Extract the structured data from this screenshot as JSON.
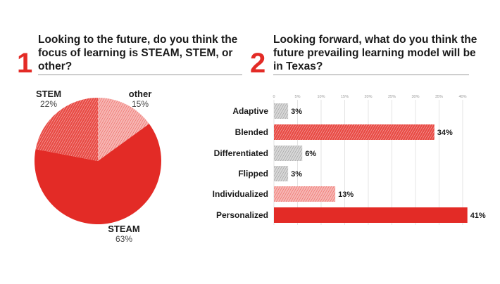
{
  "chart_data": [
    {
      "type": "pie",
      "number": "1",
      "title": "Looking to the future, do you think the focus of learning is STEAM, STEM, or other?",
      "slices": [
        {
          "label": "other",
          "value": 15,
          "display": "15%",
          "fill": "light-hatch"
        },
        {
          "label": "STEAM",
          "value": 63,
          "display": "63%",
          "fill": "solid"
        },
        {
          "label": "STEM",
          "value": 22,
          "display": "22%",
          "fill": "red-hatch"
        }
      ]
    },
    {
      "type": "bar",
      "orientation": "horizontal",
      "number": "2",
      "title": "Looking forward, what do you think the future prevailing learning model will be in Texas?",
      "categories": [
        "Adaptive",
        "Blended",
        "Differentiated",
        "Flipped",
        "Individualized",
        "Personalized"
      ],
      "values": [
        3,
        34,
        6,
        3,
        13,
        41
      ],
      "value_labels": [
        "3%",
        "34%",
        "6%",
        "3%",
        "13%",
        "41%"
      ],
      "fills": [
        "gray-hatch",
        "red-hatch",
        "gray-hatch",
        "gray-hatch",
        "light-hatch",
        "solid"
      ],
      "xlim": [
        0,
        40
      ],
      "ticks": [
        0,
        5,
        10,
        15,
        20,
        25,
        30,
        35,
        40
      ],
      "tick_labels": [
        "0",
        "5%",
        "10%",
        "15%",
        "20%",
        "25%",
        "30%",
        "35%",
        "40%"
      ],
      "grid": true
    }
  ],
  "colors": {
    "accent": "#e32b26",
    "gray": "#9a9a9a"
  }
}
